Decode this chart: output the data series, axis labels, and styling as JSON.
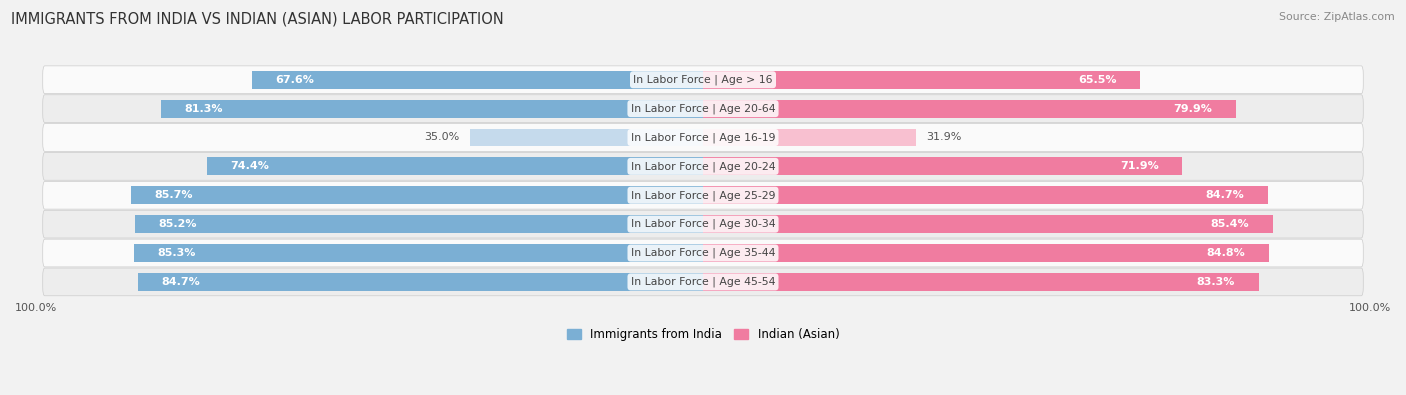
{
  "title": "IMMIGRANTS FROM INDIA VS INDIAN (ASIAN) LABOR PARTICIPATION",
  "source": "Source: ZipAtlas.com",
  "categories": [
    "In Labor Force | Age > 16",
    "In Labor Force | Age 20-64",
    "In Labor Force | Age 16-19",
    "In Labor Force | Age 20-24",
    "In Labor Force | Age 25-29",
    "In Labor Force | Age 30-34",
    "In Labor Force | Age 35-44",
    "In Labor Force | Age 45-54"
  ],
  "india_values": [
    67.6,
    81.3,
    35.0,
    74.4,
    85.7,
    85.2,
    85.3,
    84.7
  ],
  "asian_values": [
    65.5,
    79.9,
    31.9,
    71.9,
    84.7,
    85.4,
    84.8,
    83.3
  ],
  "india_color": "#7BAFD4",
  "india_color_light": "#C5DAEC",
  "asian_color": "#F07CA0",
  "asian_color_light": "#F8C0D0",
  "bar_height": 0.62,
  "background_color": "#F2F2F2",
  "row_color_light": "#FAFAFA",
  "row_color_dark": "#EDEDED",
  "legend_india": "Immigrants from India",
  "legend_asian": "Indian (Asian)",
  "title_fontsize": 10.5,
  "label_fontsize": 7.8,
  "value_fontsize": 8.0,
  "source_fontsize": 7.8,
  "low_threshold": 50
}
